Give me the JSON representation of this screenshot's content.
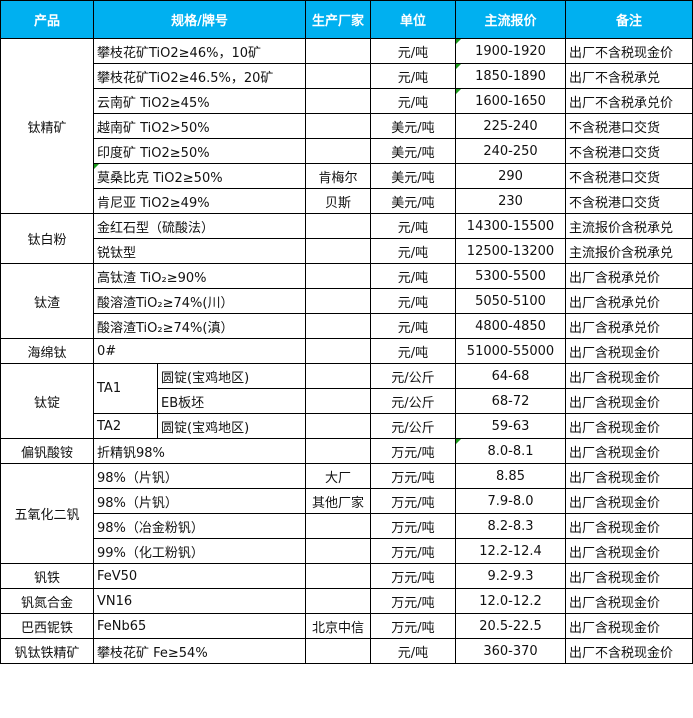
{
  "header": [
    "产品",
    "规格/牌号",
    "生产厂家",
    "单位",
    "主流报价",
    "备注"
  ],
  "colors": {
    "header_bg": "#00B0F0",
    "comment_marker": "#1a9a1a"
  },
  "groups": [
    {
      "product": "钛精矿",
      "rows": [
        {
          "spec": "攀枝花矿TiO2≥46%，10矿",
          "maker": "",
          "unit": "元/吨",
          "price": "1900-1920",
          "note": "出厂不含税现金价",
          "price_marker": true
        },
        {
          "spec": "攀枝花矿TiO2≥46.5%，20矿",
          "maker": "",
          "unit": "元/吨",
          "price": "1850-1890",
          "note": "出厂不含税承兑",
          "price_marker": true
        },
        {
          "spec": "云南矿 TiO2≥45%",
          "maker": "",
          "unit": "元/吨",
          "price": "1600-1650",
          "note": "出厂不含税承兑价",
          "price_marker": true
        },
        {
          "spec": "越南矿 TiO2>50%",
          "maker": "",
          "unit": "美元/吨",
          "price": "225-240",
          "note": "不含税港口交货"
        },
        {
          "spec": "印度矿 TiO2≥50%",
          "maker": "",
          "unit": "美元/吨",
          "price": "240-250",
          "note": "不含税港口交货"
        },
        {
          "spec": "莫桑比克 TiO2≥50%",
          "maker": "肯梅尔",
          "unit": "美元/吨",
          "price": "290",
          "note": "不含税港口交货",
          "spec_marker": true
        },
        {
          "spec": "肯尼亚 TiO2≥49%",
          "maker": "贝斯",
          "unit": "美元/吨",
          "price": "230",
          "note": "不含税港口交货"
        }
      ]
    },
    {
      "product": "钛白粉",
      "rows": [
        {
          "spec": "金红石型（硫酸法）",
          "maker": "",
          "unit": "元/吨",
          "price": "14300-15500",
          "note": "主流报价含税承兑"
        },
        {
          "spec": "锐钛型",
          "maker": "",
          "unit": "元/吨",
          "price": "12500-13200",
          "note": "主流报价含税承兑"
        }
      ]
    },
    {
      "product": "钛渣",
      "rows": [
        {
          "spec": "高钛渣 TiO₂≥90%",
          "maker": "",
          "unit": "元/吨",
          "price": "5300-5500",
          "note": "出厂含税承兑价"
        },
        {
          "spec": "酸溶渣TiO₂≥74%(川）",
          "maker": "",
          "unit": "元/吨",
          "price": "5050-5100",
          "note": "出厂含税承兑价"
        },
        {
          "spec": "酸溶渣TiO₂≥74%(滇）",
          "maker": "",
          "unit": "元/吨",
          "price": "4800-4850",
          "note": "出厂含税承兑价"
        }
      ]
    },
    {
      "product": "海绵钛",
      "rows": [
        {
          "spec": "0#",
          "maker": "",
          "unit": "元/吨",
          "price": "51000-55000",
          "note": "出厂含税现金价"
        }
      ]
    },
    {
      "product": "钛锭",
      "rows": [
        {
          "grade": "TA1",
          "grade_span": 2,
          "spec": "圆锭(宝鸡地区)",
          "maker": "",
          "unit": "元/公斤",
          "price": "64-68",
          "note": "出厂含税现金价"
        },
        {
          "spec": "EB板坯",
          "maker": "",
          "unit": "元/公斤",
          "price": "68-72",
          "note": "出厂含税现金价"
        },
        {
          "grade": "TA2",
          "grade_span": 1,
          "spec": "圆锭(宝鸡地区)",
          "maker": "",
          "unit": "元/公斤",
          "price": "59-63",
          "note": "出厂含税现金价"
        }
      ]
    },
    {
      "product": "偏钒酸铵",
      "rows": [
        {
          "spec": "折精钒98%",
          "maker": "",
          "unit": "万元/吨",
          "price": "8.0-8.1",
          "note": "出厂含税现金价",
          "price_marker": true
        }
      ]
    },
    {
      "product": "五氧化二钒",
      "rows": [
        {
          "spec": "98%（片钒）",
          "maker": "大厂",
          "unit": "万元/吨",
          "price": "8.85",
          "note": "出厂含税现金价"
        },
        {
          "spec": "98%（片钒）",
          "maker": "其他厂家",
          "unit": "万元/吨",
          "price": "7.9-8.0",
          "note": "出厂含税现金价"
        },
        {
          "spec": "98%（冶金粉钒）",
          "maker": "",
          "unit": "万元/吨",
          "price": "8.2-8.3",
          "note": "出厂含税现金价"
        },
        {
          "spec": "99%（化工粉钒）",
          "maker": "",
          "unit": "万元/吨",
          "price": "12.2-12.4",
          "note": "出厂含税现金价"
        }
      ]
    },
    {
      "product": "钒铁",
      "rows": [
        {
          "spec": "FeV50",
          "maker": "",
          "unit": "万元/吨",
          "price": "9.2-9.3",
          "note": "出厂含税现金价"
        }
      ]
    },
    {
      "product": "钒氮合金",
      "rows": [
        {
          "spec": "VN16",
          "maker": "",
          "unit": "万元/吨",
          "price": "12.0-12.2",
          "note": "出厂含税现金价"
        }
      ]
    },
    {
      "product": "巴西铌铁",
      "rows": [
        {
          "spec": "FeNb65",
          "maker": "北京中信",
          "unit": "万元/吨",
          "price": "20.5-22.5",
          "note": "出厂含税现金价"
        }
      ]
    },
    {
      "product": "钒钛铁精矿",
      "rows": [
        {
          "spec": "攀枝花矿 Fe≥54%",
          "maker": "",
          "unit": "元/吨",
          "price": "360-370",
          "note": "出厂不含税现金价"
        }
      ]
    }
  ]
}
